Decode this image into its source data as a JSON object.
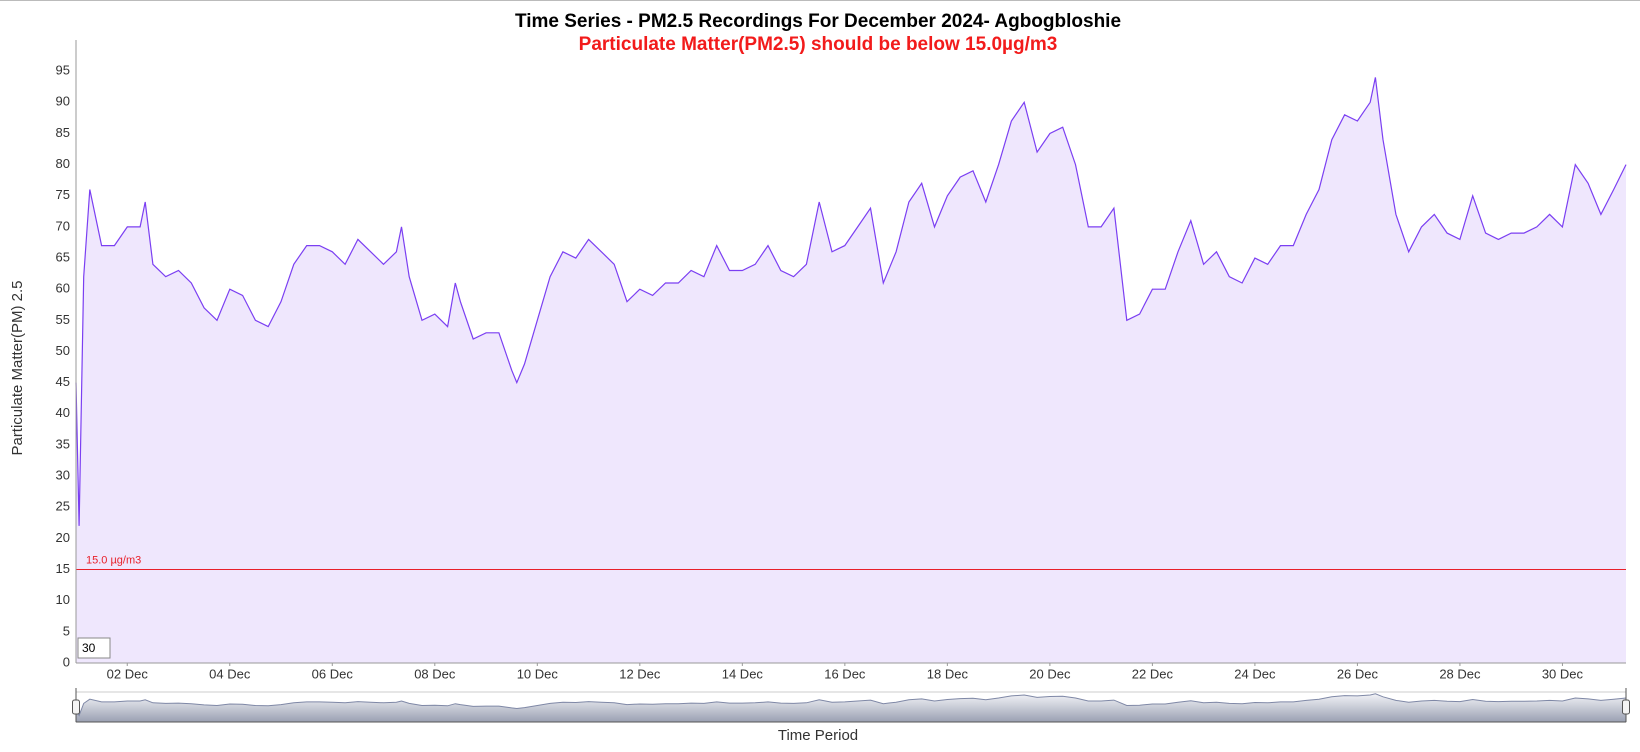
{
  "chart_data": {
    "type": "line",
    "title": "Time Series - PM2.5 Recordings For December 2024- Agbogbloshie",
    "subtitle": "Particulate Matter(PM2.5) should be below 15.0µg/m3",
    "y_label": "Particulate Matter(PM) 2.5",
    "x_label": "Time Period",
    "range_input": 30,
    "threshold": {
      "value": 15,
      "label": "15.0 µg/m3",
      "color": "#e8202a"
    },
    "grid": false,
    "xlim": [
      1,
      31.24
    ],
    "ylim": [
      0,
      100
    ],
    "yticks": [
      0,
      5,
      10,
      15,
      20,
      25,
      30,
      35,
      40,
      45,
      50,
      55,
      60,
      65,
      70,
      75,
      80,
      85,
      90,
      95
    ],
    "xticks": [
      {
        "value": 2,
        "label": "02 Dec"
      },
      {
        "value": 4,
        "label": "04 Dec"
      },
      {
        "value": 6,
        "label": "06 Dec"
      },
      {
        "value": 8,
        "label": "08 Dec"
      },
      {
        "value": 10,
        "label": "10 Dec"
      },
      {
        "value": 12,
        "label": "12 Dec"
      },
      {
        "value": 14,
        "label": "14 Dec"
      },
      {
        "value": 16,
        "label": "16 Dec"
      },
      {
        "value": 18,
        "label": "18 Dec"
      },
      {
        "value": 20,
        "label": "20 Dec"
      },
      {
        "value": 22,
        "label": "22 Dec"
      },
      {
        "value": 24,
        "label": "24 Dec"
      },
      {
        "value": 26,
        "label": "26 Dec"
      },
      {
        "value": 28,
        "label": "28 Dec"
      },
      {
        "value": 30,
        "label": "30 Dec"
      }
    ],
    "series": [
      {
        "name": "PM2.5",
        "color": "#7b3ff2",
        "fill": "#efe7fd",
        "x": [
          1,
          1.06,
          1.15,
          1.27,
          1.5,
          1.75,
          2,
          2.25,
          2.35,
          2.5,
          2.75,
          3,
          3.25,
          3.5,
          3.75,
          4,
          4.25,
          4.5,
          4.75,
          5,
          5.25,
          5.5,
          5.75,
          6,
          6.25,
          6.5,
          6.75,
          7,
          7.25,
          7.35,
          7.5,
          7.75,
          8,
          8.25,
          8.4,
          8.5,
          8.75,
          9,
          9.25,
          9.5,
          9.6,
          9.75,
          10,
          10.25,
          10.5,
          10.75,
          11,
          11.25,
          11.5,
          11.75,
          12,
          12.25,
          12.5,
          12.75,
          13,
          13.25,
          13.5,
          13.75,
          14,
          14.25,
          14.5,
          14.75,
          15,
          15.25,
          15.5,
          15.75,
          16,
          16.25,
          16.5,
          16.75,
          17,
          17.25,
          17.5,
          17.75,
          18,
          18.25,
          18.5,
          18.75,
          19,
          19.25,
          19.5,
          19.75,
          20,
          20.25,
          20.5,
          20.75,
          21,
          21.25,
          21.5,
          21.75,
          22,
          22.25,
          22.5,
          22.75,
          23,
          23.25,
          23.5,
          23.75,
          24,
          24.25,
          24.5,
          24.75,
          25,
          25.25,
          25.5,
          25.75,
          26,
          26.25,
          26.35,
          26.5,
          26.75,
          27,
          27.25,
          27.5,
          27.75,
          28,
          28.25,
          28.5,
          28.75,
          29,
          29.25,
          29.5,
          29.75,
          30,
          30.25,
          30.5,
          30.75,
          31,
          31.24
        ],
        "values": [
          45,
          22,
          62,
          76,
          67,
          67,
          70,
          70,
          74,
          64,
          62,
          63,
          61,
          57,
          55,
          60,
          59,
          55,
          54,
          58,
          64,
          67,
          67,
          66,
          64,
          68,
          66,
          64,
          66,
          70,
          62,
          55,
          56,
          54,
          61,
          58,
          52,
          53,
          53,
          47,
          45,
          48,
          55,
          62,
          66,
          65,
          68,
          66,
          64,
          58,
          60,
          59,
          61,
          61,
          63,
          62,
          67,
          63,
          63,
          64,
          67,
          63,
          62,
          64,
          74,
          66,
          67,
          70,
          73,
          61,
          66,
          74,
          77,
          70,
          75,
          78,
          79,
          74,
          80,
          87,
          90,
          82,
          85,
          86,
          80,
          70,
          70,
          73,
          55,
          56,
          60,
          60,
          66,
          71,
          64,
          66,
          62,
          61,
          65,
          64,
          67,
          67,
          72,
          76,
          84,
          88,
          87,
          90,
          94,
          84,
          72,
          66,
          70,
          72,
          69,
          68,
          75,
          69,
          68,
          69,
          69,
          70,
          72,
          70,
          80,
          77,
          72,
          76,
          80
        ]
      }
    ]
  }
}
